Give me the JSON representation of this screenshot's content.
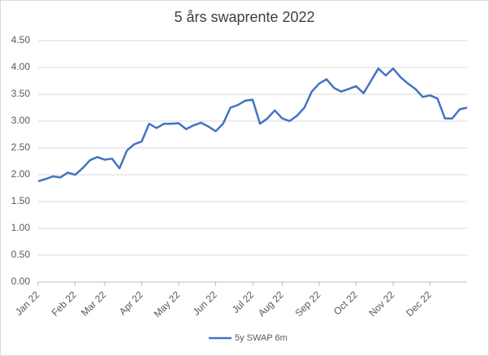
{
  "chart_data": {
    "type": "line",
    "title": "5 års swaprente 2022",
    "categories": [
      "Jan 22",
      null,
      null,
      null,
      null,
      "Feb 22",
      null,
      null,
      null,
      "Mar 22",
      null,
      null,
      null,
      null,
      "Apr 22",
      null,
      null,
      null,
      null,
      "May 22",
      null,
      null,
      null,
      null,
      "Jun 22",
      null,
      null,
      null,
      null,
      "Jul 22",
      null,
      null,
      null,
      "Aug 22",
      null,
      null,
      null,
      null,
      "Sep 22",
      null,
      null,
      null,
      null,
      "Oct 22",
      null,
      null,
      null,
      null,
      "Nov 22",
      null,
      null,
      null,
      null,
      "Dec 22",
      null,
      null,
      null,
      null,
      null
    ],
    "series": [
      {
        "name": "5y SWAP 6m",
        "color": "#4472c4",
        "values": [
          1.88,
          1.92,
          1.97,
          1.95,
          2.04,
          2.0,
          2.12,
          2.27,
          2.33,
          2.28,
          2.3,
          2.12,
          2.45,
          2.57,
          2.62,
          2.95,
          2.87,
          2.95,
          2.95,
          2.96,
          2.85,
          2.92,
          2.97,
          2.9,
          2.81,
          2.95,
          3.25,
          3.3,
          3.38,
          3.4,
          2.95,
          3.05,
          3.2,
          3.05,
          3.0,
          3.1,
          3.25,
          3.55,
          3.7,
          3.78,
          3.62,
          3.55,
          3.6,
          3.65,
          3.52,
          3.75,
          3.98,
          3.85,
          3.98,
          3.82,
          3.7,
          3.6,
          3.45,
          3.48,
          3.42,
          3.05,
          3.05,
          3.22,
          3.25
        ]
      }
    ],
    "ylim": [
      0,
      4.5
    ],
    "yticks": [
      {
        "value": 0,
        "label": "0.00"
      },
      {
        "value": 0.5,
        "label": "0.50"
      },
      {
        "value": 1,
        "label": "1.00"
      },
      {
        "value": 1.5,
        "label": "1.50"
      },
      {
        "value": 2,
        "label": "2.00"
      },
      {
        "value": 2.5,
        "label": "2.50"
      },
      {
        "value": 3,
        "label": "3.00"
      },
      {
        "value": 3.5,
        "label": "3.50"
      },
      {
        "value": 4,
        "label": "4.00"
      },
      {
        "value": 4.5,
        "label": "4.50"
      }
    ],
    "grid": true,
    "legend": "bottom"
  }
}
